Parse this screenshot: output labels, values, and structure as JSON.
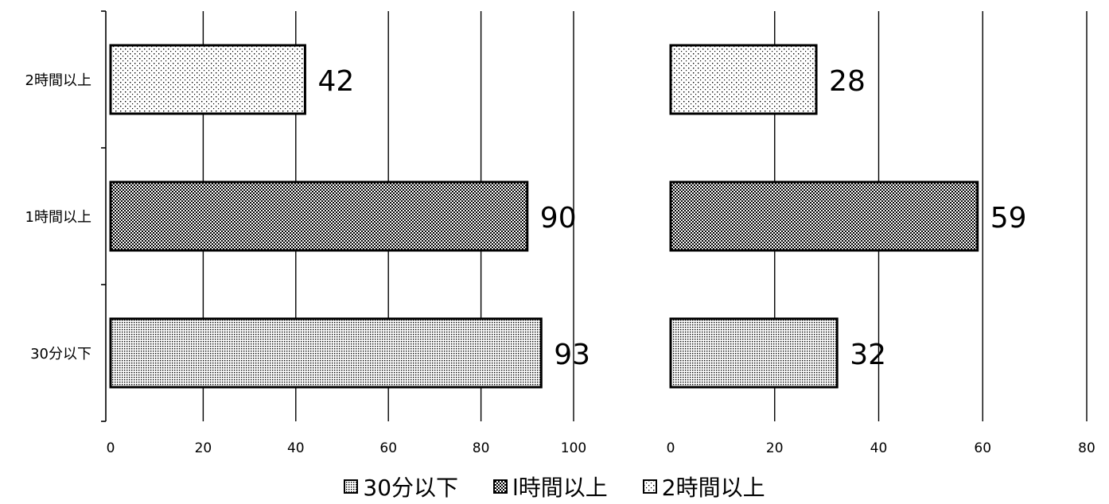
{
  "chart_data": [
    {
      "type": "bar",
      "orientation": "horizontal",
      "categories": [
        "2時間以上",
        "1時間以上",
        "30分以下"
      ],
      "values": [
        42,
        90,
        93
      ],
      "data_labels": [
        "42",
        "90",
        "93"
      ],
      "xlim": [
        0,
        100
      ],
      "xticks": [
        "0",
        "20",
        "40",
        "60",
        "80",
        "100"
      ],
      "grid": true
    },
    {
      "type": "bar",
      "orientation": "horizontal",
      "categories": [
        "2時間以上",
        "1時間以上",
        "30分以下"
      ],
      "values": [
        28,
        59,
        32
      ],
      "data_labels": [
        "28",
        "59",
        "32"
      ],
      "xlim": [
        0,
        80
      ],
      "xticks": [
        "0",
        "20",
        "40",
        "60",
        "80"
      ],
      "grid": true
    }
  ],
  "legend": [
    {
      "label": "30分以下",
      "pattern": "dense-dots"
    },
    {
      "label": "l時間以上",
      "pattern": "checker-dots"
    },
    {
      "label": "2時間以上",
      "pattern": "sparse-dots"
    }
  ],
  "colors": {
    "bar_outline": "#000000",
    "grid": "#000000",
    "background": "#ffffff"
  }
}
